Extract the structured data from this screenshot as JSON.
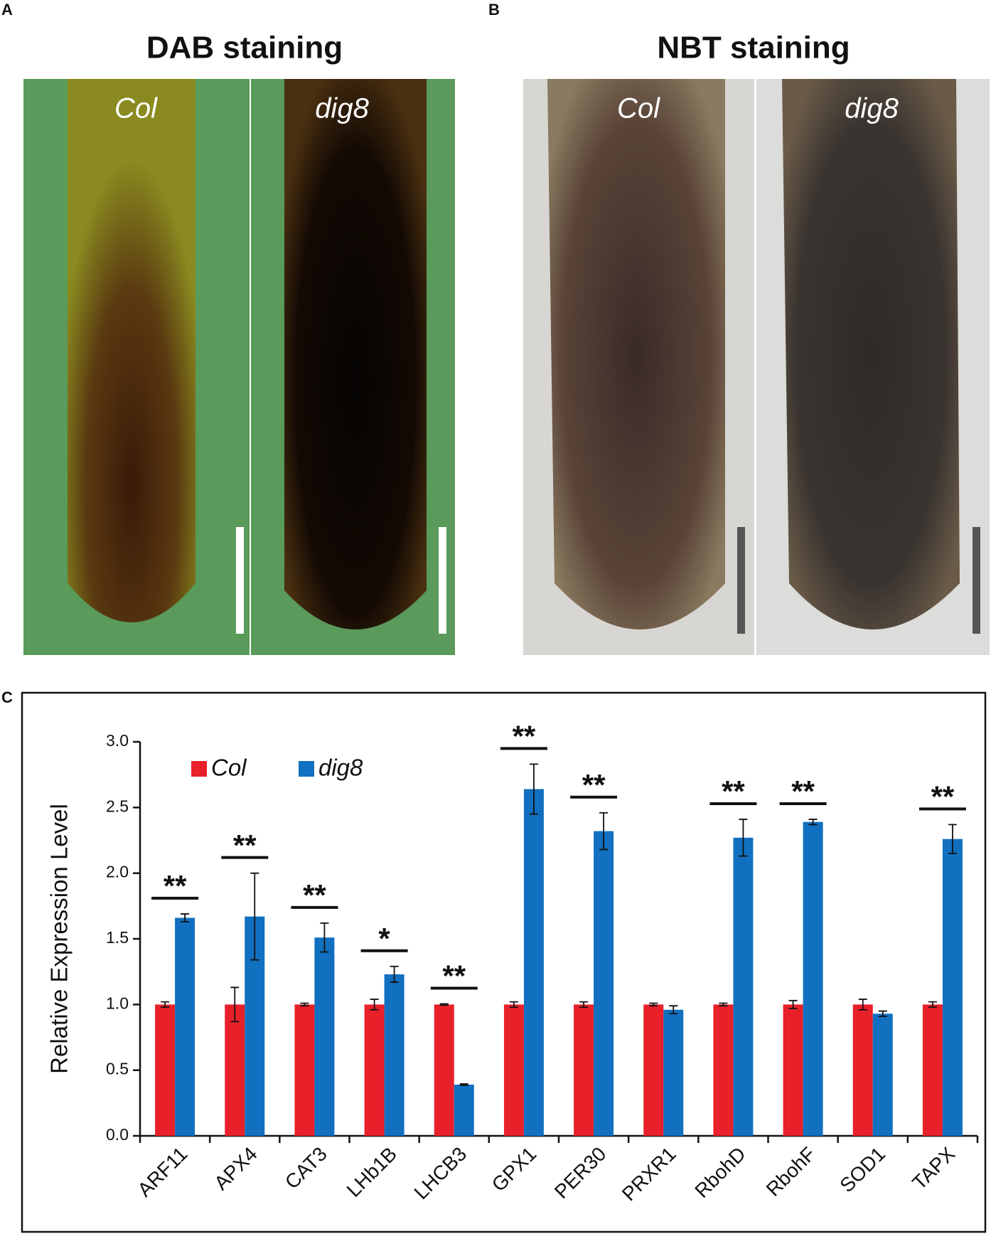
{
  "panels": {
    "a": {
      "letter": "A",
      "title": "DAB staining",
      "left": "Col",
      "right": "dig8"
    },
    "b": {
      "letter": "B",
      "title": "NBT staining",
      "left": "Col",
      "right": "dig8"
    },
    "c": {
      "letter": "C"
    }
  },
  "chart_data": {
    "type": "bar",
    "ylabel": "Relative Expression Level",
    "categories": [
      "ARF11",
      "APX4",
      "CAT3",
      "LHb1B",
      "LHCB3",
      "GPX1",
      "PER30",
      "PRXR1",
      "RbohD",
      "RbohF",
      "SOD1",
      "TAPX"
    ],
    "series": [
      {
        "name": "Col",
        "color": "#e8202a",
        "values": [
          1.0,
          1.0,
          1.0,
          1.0,
          1.0,
          1.0,
          1.0,
          1.0,
          1.0,
          1.0,
          1.0,
          1.0
        ],
        "errors": [
          0.02,
          0.13,
          0.01,
          0.04,
          0.005,
          0.02,
          0.02,
          0.01,
          0.01,
          0.03,
          0.04,
          0.02
        ]
      },
      {
        "name": "dig8",
        "color": "#1170c0",
        "values": [
          1.66,
          1.67,
          1.51,
          1.23,
          0.39,
          2.64,
          2.32,
          0.96,
          2.27,
          2.39,
          0.93,
          2.26
        ],
        "errors": [
          0.03,
          0.33,
          0.11,
          0.06,
          0.005,
          0.19,
          0.14,
          0.03,
          0.14,
          0.02,
          0.02,
          0.11
        ]
      }
    ],
    "significance": [
      "**",
      "**",
      "**",
      "*",
      "**",
      "**",
      "**",
      null,
      "**",
      "**",
      null,
      "**"
    ],
    "ylim": [
      0,
      3.0
    ],
    "yticks": [
      {
        "value": 0,
        "label": "0.0"
      },
      {
        "value": 0.5,
        "label": "0.5"
      },
      {
        "value": 1,
        "label": "1.0"
      },
      {
        "value": 1.5,
        "label": "1.5"
      },
      {
        "value": 2,
        "label": "2.0"
      },
      {
        "value": 2.5,
        "label": "2.5"
      },
      {
        "value": 3,
        "label": "3.0"
      }
    ],
    "grid": false
  }
}
